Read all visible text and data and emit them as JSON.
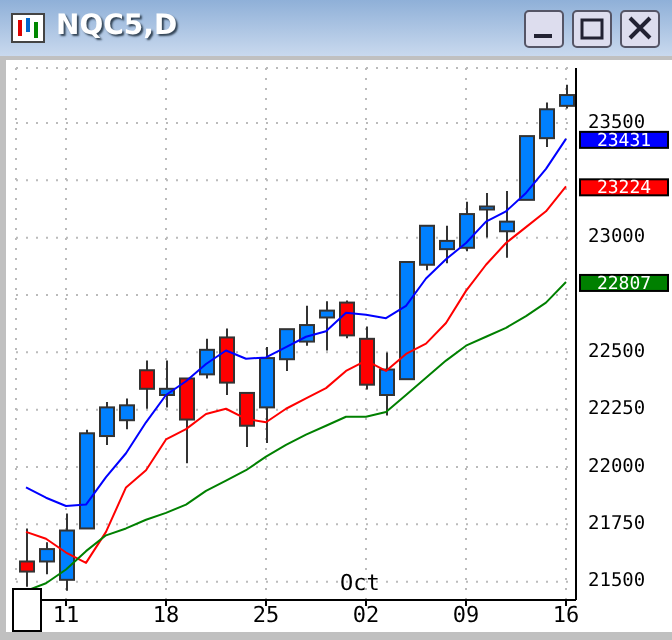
{
  "chart_data": {
    "type": "candlestick",
    "title": "NQC5,D",
    "categories": [
      null,
      null,
      "11",
      null,
      null,
      null,
      null,
      "18",
      null,
      null,
      null,
      null,
      "25",
      null,
      null,
      null,
      null,
      "02",
      null,
      null,
      null,
      null,
      "09",
      null,
      null,
      null,
      null,
      "16"
    ],
    "ohlc": [
      [
        21588,
        21732,
        21478,
        21544
      ],
      [
        21588,
        21672,
        21532,
        21642
      ],
      [
        21508,
        21797,
        21460,
        21723
      ],
      [
        21732,
        22162,
        21732,
        22147
      ],
      [
        22135,
        22284,
        22096,
        22260
      ],
      [
        22204,
        22299,
        22165,
        22269
      ],
      [
        22422,
        22464,
        22254,
        22341
      ],
      [
        22314,
        22464,
        22260,
        22341
      ],
      [
        22386,
        22386,
        22016,
        22207
      ],
      [
        22404,
        22559,
        22386,
        22511
      ],
      [
        22565,
        22604,
        22314,
        22368
      ],
      [
        22323,
        22323,
        22087,
        22180
      ],
      [
        22260,
        22523,
        22105,
        22475
      ],
      [
        22470,
        22601,
        22419,
        22601
      ],
      [
        22547,
        22703,
        22529,
        22619
      ],
      [
        22652,
        22723,
        22508,
        22682
      ],
      [
        22717,
        22726,
        22562,
        22574
      ],
      [
        22559,
        22613,
        22338,
        22359
      ],
      [
        22314,
        22499,
        22225,
        22425
      ],
      [
        22383,
        22894,
        22383,
        22894
      ],
      [
        22882,
        23052,
        22858,
        23052
      ],
      [
        22950,
        23052,
        22888,
        22986
      ],
      [
        22956,
        23157,
        22941,
        23103
      ],
      [
        23130,
        23195,
        23001,
        23136
      ],
      [
        23028,
        23204,
        22912,
        23070
      ],
      [
        23165,
        23443,
        23165,
        23443
      ],
      [
        23434,
        23590,
        23395,
        23560
      ],
      [
        23575,
        23667,
        23563,
        23622
      ]
    ],
    "colors": [
      "#ff0000",
      "#0080ff",
      "#0080ff",
      "#0080ff",
      "#0080ff",
      "#0080ff",
      "#ff0000",
      "#0080ff",
      "#ff0000",
      "#0080ff",
      "#ff0000",
      "#ff0000",
      "#0080ff",
      "#0080ff",
      "#0080ff",
      "#0080ff",
      "#ff0000",
      "#ff0000",
      "#0080ff",
      "#0080ff",
      "#0080ff",
      "#0080ff",
      "#0080ff",
      "#0080ff",
      "#0080ff",
      "#0080ff",
      "#0080ff",
      "#0080ff"
    ],
    "series": [
      {
        "type": "line",
        "color": "#0000ff",
        "values": [
          21911,
          21866,
          21830,
          21836,
          21956,
          22060,
          22195,
          22314,
          22374,
          22449,
          22508,
          22472,
          22478,
          22523,
          22568,
          22592,
          22673,
          22664,
          22649,
          22703,
          22822,
          22906,
          22977,
          23070,
          23115,
          23195,
          23300,
          23431
        ],
        "value_labels": [
          null,
          null,
          null,
          null,
          null,
          null,
          null,
          null,
          null,
          null,
          null,
          null,
          null,
          null,
          null,
          null,
          null,
          null,
          null,
          null,
          null,
          null,
          null,
          null,
          null,
          null,
          null,
          "23431"
        ]
      },
      {
        "type": "line",
        "color": "#ff0000",
        "values": [
          21717,
          21687,
          21627,
          21582,
          21717,
          21911,
          21986,
          22120,
          22165,
          22231,
          22254,
          22210,
          22195,
          22254,
          22299,
          22344,
          22419,
          22464,
          22419,
          22493,
          22538,
          22628,
          22768,
          22882,
          22977,
          23046,
          23115,
          23224
        ],
        "value_labels": [
          null,
          null,
          null,
          null,
          null,
          null,
          null,
          null,
          null,
          null,
          null,
          null,
          null,
          null,
          null,
          null,
          null,
          null,
          null,
          null,
          null,
          null,
          null,
          null,
          null,
          null,
          null,
          "23224"
        ]
      },
      {
        "type": "line",
        "color": "#008000",
        "values": [
          21460,
          21493,
          21553,
          21633,
          21702,
          21732,
          21770,
          21800,
          21836,
          21896,
          21941,
          21986,
          22045,
          22096,
          22141,
          22180,
          22219,
          22219,
          22240,
          22314,
          22389,
          22464,
          22529,
          22568,
          22607,
          22658,
          22717,
          22807
        ],
        "value_labels": [
          null,
          null,
          null,
          null,
          null,
          null,
          null,
          null,
          null,
          null,
          null,
          null,
          null,
          null,
          null,
          null,
          null,
          null,
          null,
          null,
          null,
          null,
          null,
          null,
          null,
          null,
          null,
          "22807"
        ]
      }
    ],
    "ylim": [
      21420,
      23740
    ],
    "yticks": [
      21500,
      21750,
      22000,
      22250,
      22500,
      {
        "value": 22750,
        "label": null
      },
      {
        "value": 23000,
        "label": "23000"
      },
      {
        "value": 23250,
        "label": null
      },
      23500
    ],
    "annotations": [
      "Oct"
    ],
    "grid": true,
    "legend": false
  }
}
